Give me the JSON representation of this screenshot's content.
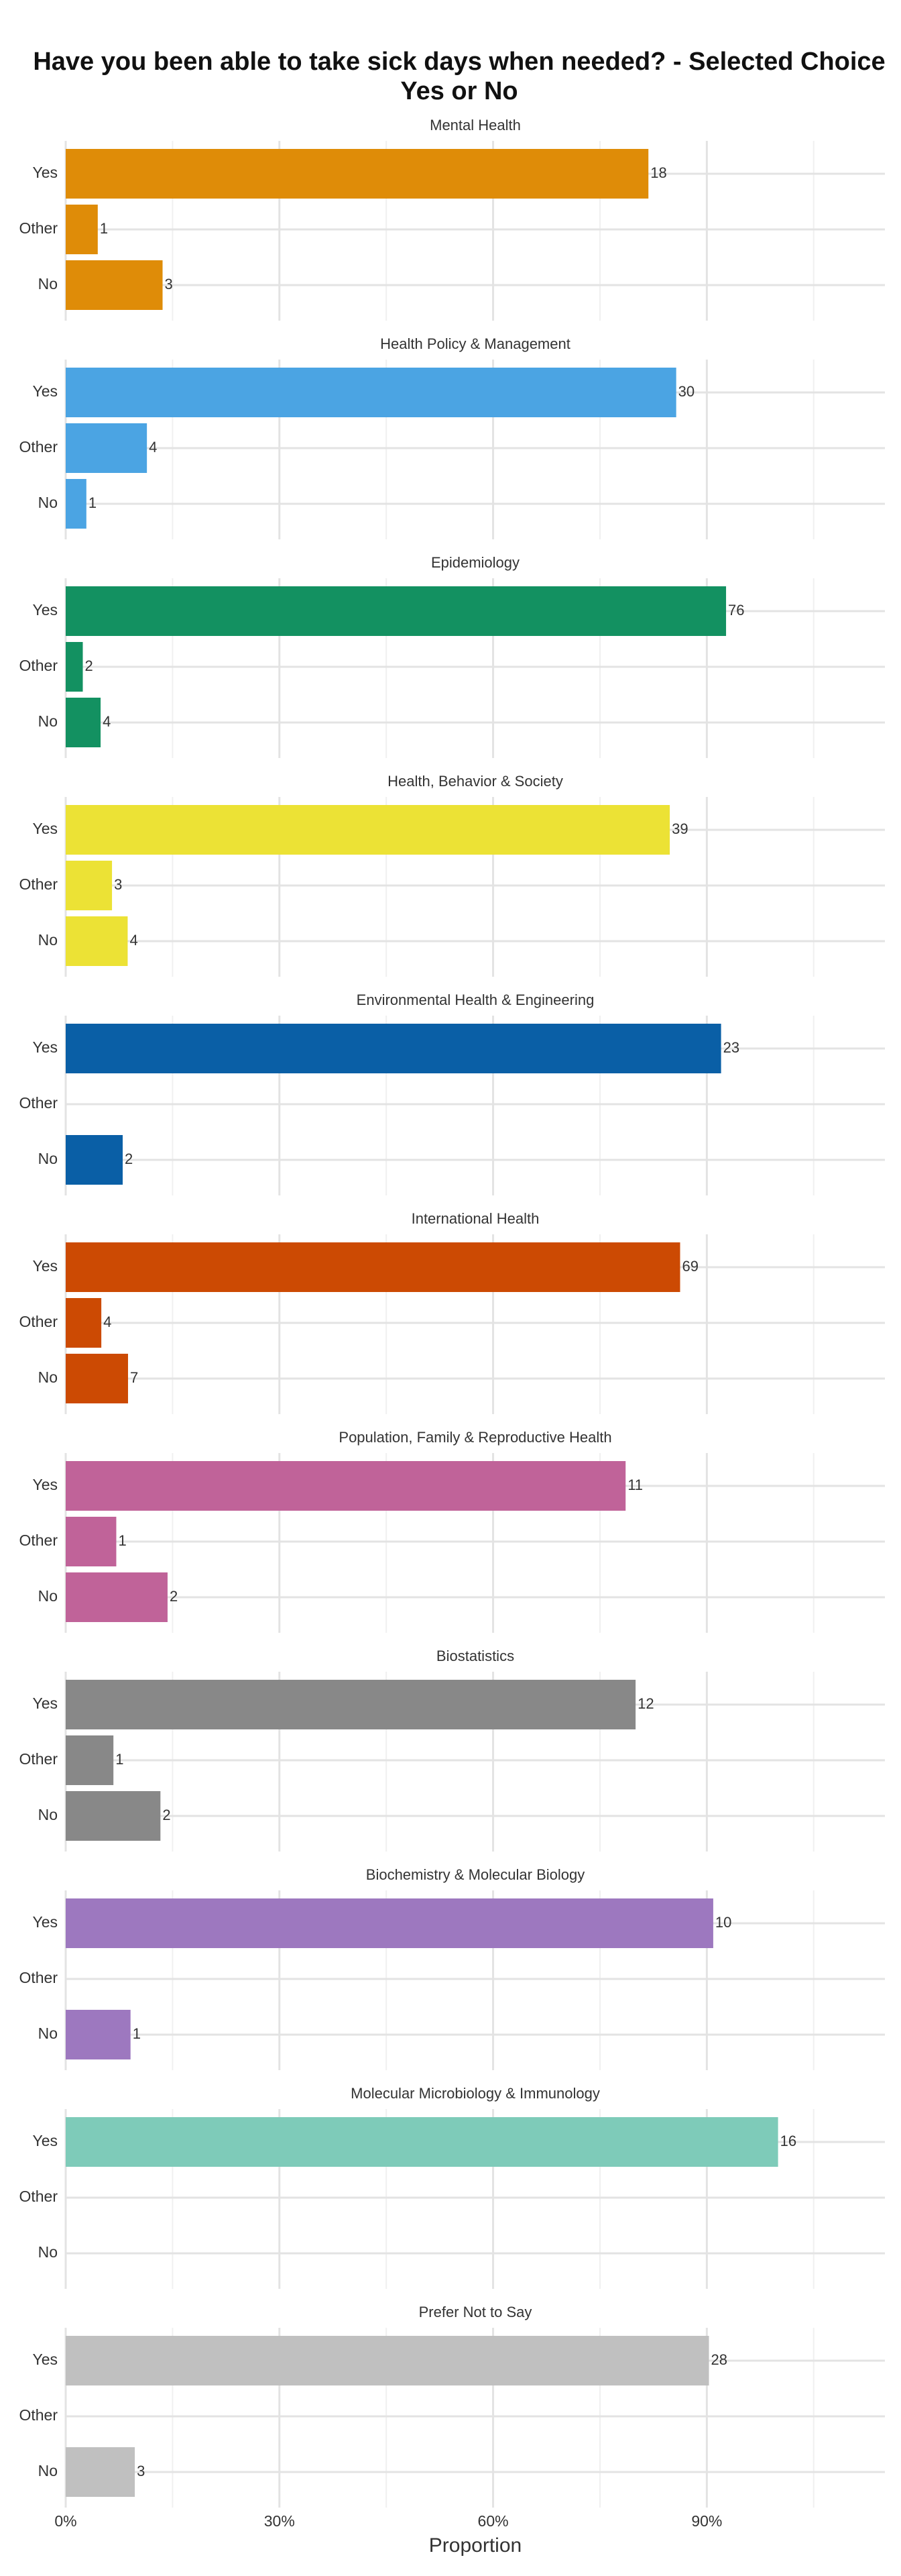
{
  "chart_data": {
    "type": "bar",
    "title": "Have you been able to take sick days when needed? - Selected Choice Yes or No",
    "xlabel": "Proportion",
    "categories": [
      "Yes",
      "Other",
      "No"
    ],
    "xlim": [
      0,
      115
    ],
    "xticks": [
      {
        "value": 0,
        "label": "0%"
      },
      {
        "value": 30,
        "label": "30%"
      },
      {
        "value": 60,
        "label": "60%"
      },
      {
        "value": 90,
        "label": "90%"
      }
    ],
    "minor_xticks": [
      15,
      45,
      75,
      105
    ],
    "grid": true,
    "facets": [
      {
        "title": "Mental Health",
        "color": "#df8c08",
        "values": [
          81.8,
          4.5,
          13.6
        ],
        "counts": [
          18,
          1,
          3
        ]
      },
      {
        "title": "Health Policy & Management",
        "color": "#4ba4e3",
        "values": [
          85.7,
          11.4,
          2.9
        ],
        "counts": [
          30,
          4,
          1
        ]
      },
      {
        "title": "Epidemiology",
        "color": "#139161",
        "values": [
          92.7,
          2.4,
          4.9
        ],
        "counts": [
          76,
          2,
          4
        ]
      },
      {
        "title": "Health, Behavior & Society",
        "color": "#ece235",
        "values": [
          84.8,
          6.5,
          8.7
        ],
        "counts": [
          39,
          3,
          4
        ]
      },
      {
        "title": "Environmental Health & Engineering",
        "color": "#0a5fa6",
        "values": [
          92,
          null,
          8
        ],
        "counts": [
          23,
          null,
          2
        ]
      },
      {
        "title": "International Health",
        "color": "#cc4a03",
        "values": [
          86.25,
          5,
          8.75
        ],
        "counts": [
          69,
          4,
          7
        ]
      },
      {
        "title": "Population, Family & Reproductive Health",
        "color": "#c06399",
        "values": [
          78.6,
          7.1,
          14.3
        ],
        "counts": [
          11,
          1,
          2
        ]
      },
      {
        "title": "Biostatistics",
        "color": "#888888",
        "values": [
          80,
          6.7,
          13.3
        ],
        "counts": [
          12,
          1,
          2
        ]
      },
      {
        "title": "Biochemistry & Molecular Biology",
        "color": "#9d78bf",
        "values": [
          90.9,
          null,
          9.1
        ],
        "counts": [
          10,
          null,
          1
        ]
      },
      {
        "title": "Molecular Microbiology & Immunology",
        "color": "#7ecbb9",
        "values": [
          100,
          null,
          null
        ],
        "counts": [
          16,
          null,
          null
        ]
      },
      {
        "title": "Prefer Not to Say",
        "color": "#c0c0c0",
        "values": [
          90.3,
          null,
          9.7
        ],
        "counts": [
          28,
          null,
          3
        ]
      }
    ]
  }
}
